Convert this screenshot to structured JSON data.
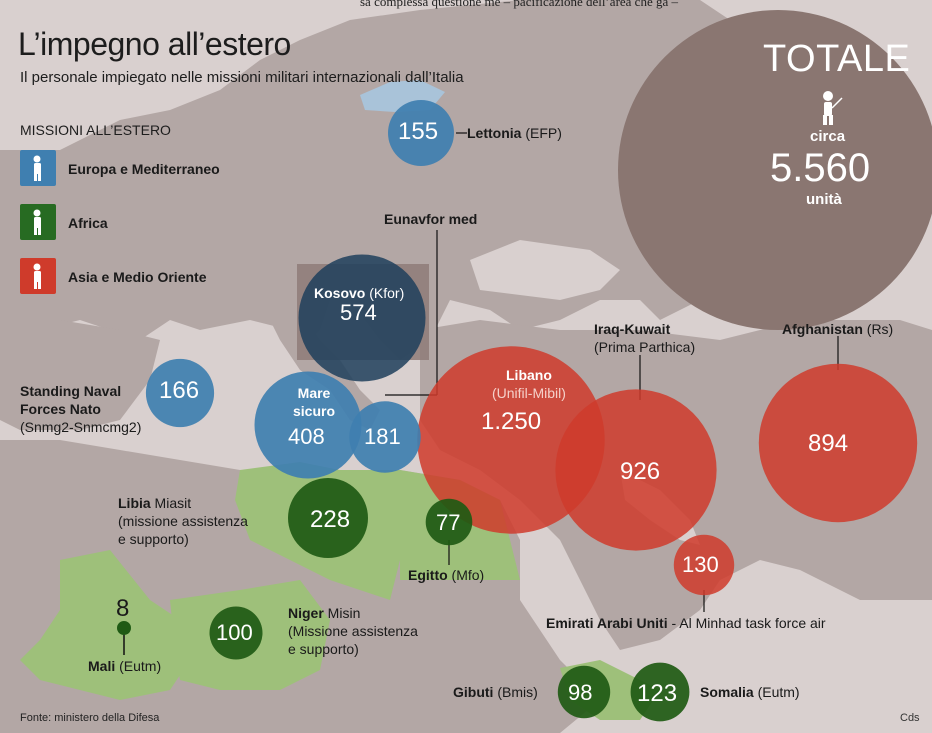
{
  "header": {
    "title": "L’impegno all’estero",
    "subtitle": "Il personale impiegato nelle missioni militari internazionali dall’Italia",
    "top_strip": "sa complessa questione me – pacificazione dell’area che ga –"
  },
  "legend": {
    "title": "MISSIONI ALL’ESTERO",
    "items": [
      {
        "label": "Europa e Mediterraneo",
        "color": "#3f7fb0"
      },
      {
        "label": "Africa",
        "color": "#276b22"
      },
      {
        "label": "Asia e Medio Oriente",
        "color": "#cf3b2b"
      }
    ]
  },
  "total": {
    "heading": "TOTALE",
    "prefix": "circa",
    "value": "5.560",
    "unit": "unità"
  },
  "missions": [
    {
      "id": "lettonia",
      "region": "Europa e Mediterraneo",
      "value": 155,
      "value_label": "155",
      "name": "Lettonia",
      "detail": "(EFP)"
    },
    {
      "id": "kosovo",
      "region": "Europa e Mediterraneo",
      "value": 574,
      "value_label": "574",
      "name": "Kosovo",
      "detail": "(Kfor)"
    },
    {
      "id": "standing-naval",
      "region": "Europa e Mediterraneo",
      "value": 166,
      "value_label": "166",
      "name": "Standing Naval Forces Nato",
      "detail": "(Snmg2-Snmcmg2)"
    },
    {
      "id": "mare-sicuro",
      "region": "Europa e Mediterraneo",
      "value": 408,
      "value_label": "408",
      "name": "Mare sicuro",
      "detail": ""
    },
    {
      "id": "eunavfor",
      "region": "Europa e Mediterraneo",
      "value": 181,
      "value_label": "181",
      "name": "Eunavfor med",
      "detail": ""
    },
    {
      "id": "libano",
      "region": "Asia e Medio Oriente",
      "value": 1250,
      "value_label": "1.250",
      "name": "Libano",
      "detail": "(Unifil-Mibil)"
    },
    {
      "id": "iraq",
      "region": "Asia e Medio Oriente",
      "value": 926,
      "value_label": "926",
      "name": "Iraq-Kuwait",
      "detail": "(Prima Parthica)"
    },
    {
      "id": "afghanistan",
      "region": "Asia e Medio Oriente",
      "value": 894,
      "value_label": "894",
      "name": "Afghanistan",
      "detail": "(Rs)"
    },
    {
      "id": "emirati",
      "region": "Asia e Medio Oriente",
      "value": 130,
      "value_label": "130",
      "name": "Emirati Arabi Uniti",
      "detail": "- Al Minhad task force air"
    },
    {
      "id": "libia",
      "region": "Africa",
      "value": 228,
      "value_label": "228",
      "name": "Libia",
      "detail": "Miasit (missione assistenza e supporto)"
    },
    {
      "id": "egitto",
      "region": "Africa",
      "value": 77,
      "value_label": "77",
      "name": "Egitto",
      "detail": "(Mfo)"
    },
    {
      "id": "niger",
      "region": "Africa",
      "value": 100,
      "value_label": "100",
      "name": "Niger",
      "detail": "Misin (Missione assistenza e supporto)"
    },
    {
      "id": "mali",
      "region": "Africa",
      "value": 8,
      "value_label": "8",
      "name": "Mali",
      "detail": "(Eutm)"
    },
    {
      "id": "gibuti",
      "region": "Africa",
      "value": 98,
      "value_label": "98",
      "name": "Gibuti",
      "detail": "(Bmis)"
    },
    {
      "id": "somalia",
      "region": "Africa",
      "value": 123,
      "value_label": "123",
      "name": "Somalia",
      "detail": "(Eutm)"
    }
  ],
  "labels": {
    "lettonia_name": "Lettonia",
    "lettonia_detail": " (EFP)",
    "kosovo_name": "Kosovo",
    "kosovo_detail": " (Kfor)",
    "naval_line1": "Standing Naval",
    "naval_line2": "Forces Nato",
    "naval_line3": "(Snmg2-Snmcmg2)",
    "mare_line1": "Mare",
    "mare_line2": "sicuro",
    "eunavfor": "Eunavfor med",
    "libano_name": "Libano",
    "libano_detail": "(Unifil-Mibil)",
    "iraq_name": "Iraq-Kuwait",
    "iraq_detail": "(Prima Parthica)",
    "afgh_name": "Afghanistan",
    "afgh_detail": " (Rs)",
    "emirati_name": "Emirati Arabi Uniti",
    "emirati_detail": " - Al Minhad task force air",
    "libia_name": "Libia",
    "libia_detail1": " Miasit",
    "libia_detail2": "(missione assistenza",
    "libia_detail3": "e supporto)",
    "egitto_name": "Egitto",
    "egitto_detail": " (Mfo)",
    "niger_name": "Niger",
    "niger_detail1": " Misin",
    "niger_detail2": "(Missione assistenza",
    "niger_detail3": "e supporto)",
    "mali_name": "Mali",
    "mali_detail": " (Eutm)",
    "gibuti_name": "Gibuti",
    "gibuti_detail": " (Bmis)",
    "somalia_name": "Somalia",
    "somalia_detail": " (Eutm)"
  },
  "footer": {
    "source": "Fonte: ministero della Difesa",
    "credit": "Cds"
  },
  "colors": {
    "sea": "#d9d0cf",
    "land": "#b3a7a5",
    "africa_land": "#9ec07a",
    "baltic_highlight": "#a9c3d9",
    "europe": "#3f7fb0",
    "europe_dark": "#1e3f5c",
    "africa": "#1f5a14",
    "asia": "#cf3b2b",
    "total_circle": "#8a7671"
  }
}
